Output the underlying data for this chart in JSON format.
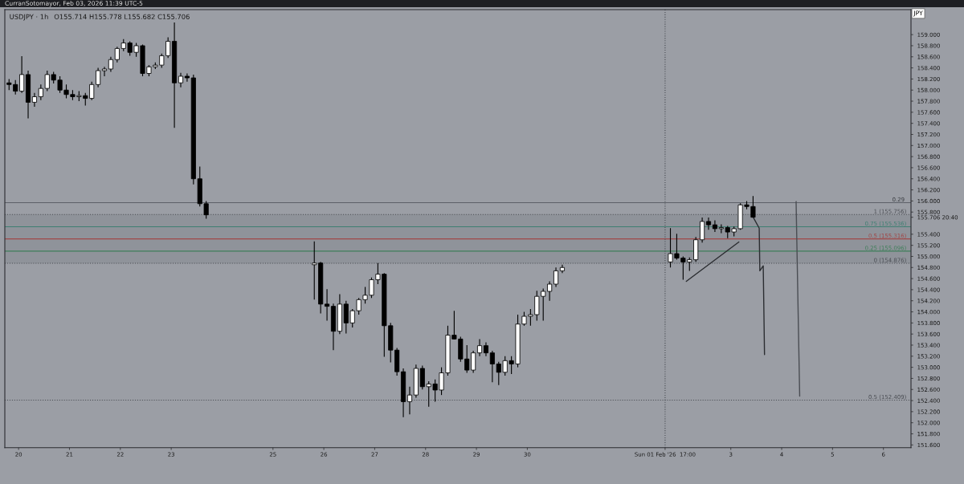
{
  "chart_data": {
    "type": "candlestick",
    "title": "USDJPY · 1h",
    "subtitle": "O155.714 H155.778 L155.682 C155.706",
    "ylabel": "JPY",
    "annotations": [
      "CurranSotomayor, Feb 03, 2026 11:39 UTC-5",
      {
        "text": "0.29",
        "x": "2026-02-06T10:00",
        "y": 155.97
      }
    ],
    "x": [
      "2026-01-19T19:30",
      "2026-01-19T22:30",
      "2026-01-20T01:30",
      "2026-01-20T04:30",
      "2026-01-20T07:30",
      "2026-01-20T10:30",
      "2026-01-20T13:30",
      "2026-01-20T16:30",
      "2026-01-20T19:30",
      "2026-01-20T22:30",
      "2026-01-21T01:30",
      "2026-01-21T04:30",
      "2026-01-21T07:30",
      "2026-01-21T10:30",
      "2026-01-21T13:30",
      "2026-01-21T16:30",
      "2026-01-21T19:30",
      "2026-01-21T22:30",
      "2026-01-22T01:30",
      "2026-01-22T04:30",
      "2026-01-22T07:30",
      "2026-01-22T10:30",
      "2026-01-22T13:30",
      "2026-01-22T16:30",
      "2026-01-22T19:30",
      "2026-01-22T22:30",
      "2026-01-23T01:30",
      "2026-01-23T04:30",
      "2026-01-23T07:30",
      "2026-01-23T10:30",
      "2026-01-23T13:30",
      "2026-01-23T16:30",
      "2026-01-25T19:30",
      "2026-01-25T22:30",
      "2026-01-26T01:30",
      "2026-01-26T04:30",
      "2026-01-26T07:30",
      "2026-01-26T10:30",
      "2026-01-26T13:30",
      "2026-01-26T16:30",
      "2026-01-26T19:30",
      "2026-01-26T22:30",
      "2026-01-27T01:30",
      "2026-01-27T04:30",
      "2026-01-27T07:30",
      "2026-01-27T10:30",
      "2026-01-27T13:30",
      "2026-01-27T16:30",
      "2026-01-27T19:30",
      "2026-01-27T22:30",
      "2026-01-28T01:30",
      "2026-01-28T04:30",
      "2026-01-28T07:30",
      "2026-01-28T10:30",
      "2026-01-28T13:30",
      "2026-01-28T16:30",
      "2026-01-28T19:30",
      "2026-01-28T22:30",
      "2026-01-29T01:30",
      "2026-01-29T04:30",
      "2026-01-29T07:30",
      "2026-01-29T10:30",
      "2026-01-29T13:30",
      "2026-01-29T16:30",
      "2026-01-29T19:30",
      "2026-01-29T22:30",
      "2026-01-30T01:30",
      "2026-01-30T04:30",
      "2026-01-30T07:30",
      "2026-01-30T10:30",
      "2026-01-30T13:30",
      "2026-01-30T16:30",
      "2026-02-01T19:30",
      "2026-02-01T22:30",
      "2026-02-02T01:30",
      "2026-02-02T04:30",
      "2026-02-02T07:30",
      "2026-02-02T10:30",
      "2026-02-02T13:30",
      "2026-02-02T16:30",
      "2026-02-02T19:30",
      "2026-02-02T22:30",
      "2026-02-03T01:30",
      "2026-02-03T04:30",
      "2026-02-03T07:30",
      "2026-02-03T10:30"
    ],
    "ohlc": [
      [
        158.13,
        158.2,
        158.0,
        158.1
      ],
      [
        158.1,
        158.18,
        157.92,
        157.98
      ],
      [
        157.98,
        158.61,
        157.95,
        158.28
      ],
      [
        158.28,
        158.35,
        157.49,
        157.78
      ],
      [
        157.78,
        157.95,
        157.7,
        157.88
      ],
      [
        157.88,
        158.1,
        157.82,
        158.03
      ],
      [
        158.03,
        158.35,
        157.98,
        158.28
      ],
      [
        158.28,
        158.33,
        158.12,
        158.18
      ],
      [
        158.18,
        158.25,
        157.95,
        158.0
      ],
      [
        158.0,
        158.1,
        157.85,
        157.92
      ],
      [
        157.92,
        158.0,
        157.82,
        157.88
      ],
      [
        157.88,
        157.98,
        157.8,
        157.9
      ],
      [
        157.9,
        157.95,
        157.72,
        157.85
      ],
      [
        157.85,
        158.15,
        157.82,
        158.1
      ],
      [
        158.1,
        158.4,
        158.05,
        158.35
      ],
      [
        158.35,
        158.42,
        158.25,
        158.38
      ],
      [
        158.38,
        158.6,
        158.33,
        158.55
      ],
      [
        158.55,
        158.78,
        158.5,
        158.75
      ],
      [
        158.75,
        158.92,
        158.7,
        158.85
      ],
      [
        158.85,
        158.88,
        158.62,
        158.68
      ],
      [
        158.68,
        158.85,
        158.6,
        158.8
      ],
      [
        158.8,
        158.82,
        158.25,
        158.3
      ],
      [
        158.3,
        158.45,
        158.25,
        158.42
      ],
      [
        158.42,
        158.5,
        158.38,
        158.45
      ],
      [
        158.45,
        158.66,
        158.4,
        158.62
      ],
      [
        158.62,
        158.95,
        158.58,
        158.88
      ],
      [
        158.88,
        159.22,
        157.32,
        158.13
      ],
      [
        158.13,
        158.31,
        158.05,
        158.25
      ],
      [
        158.25,
        158.3,
        158.15,
        158.22
      ],
      [
        158.22,
        158.28,
        156.3,
        156.4
      ],
      [
        156.4,
        156.62,
        155.9,
        155.95
      ],
      [
        155.95,
        156.0,
        155.68,
        155.75
      ],
      [
        154.85,
        155.27,
        154.22,
        154.88
      ],
      [
        154.88,
        154.9,
        153.97,
        154.14
      ],
      [
        154.14,
        154.41,
        153.84,
        154.1
      ],
      [
        154.1,
        154.15,
        153.31,
        153.65
      ],
      [
        153.65,
        154.32,
        153.6,
        154.14
      ],
      [
        154.14,
        154.2,
        153.61,
        153.8
      ],
      [
        153.8,
        154.05,
        153.72,
        154.02
      ],
      [
        154.02,
        154.25,
        153.95,
        154.22
      ],
      [
        154.22,
        154.45,
        154.15,
        154.3
      ],
      [
        154.3,
        154.62,
        154.25,
        154.58
      ],
      [
        154.58,
        154.88,
        154.5,
        154.68
      ],
      [
        154.68,
        154.7,
        153.19,
        153.75
      ],
      [
        153.75,
        153.8,
        153.09,
        153.31
      ],
      [
        153.31,
        153.35,
        152.85,
        152.92
      ],
      [
        152.92,
        152.98,
        152.1,
        152.38
      ],
      [
        152.38,
        152.65,
        152.15,
        152.5
      ],
      [
        152.5,
        153.05,
        152.45,
        152.98
      ],
      [
        152.98,
        153.03,
        152.6,
        152.65
      ],
      [
        152.65,
        152.75,
        152.29,
        152.7
      ],
      [
        152.7,
        152.78,
        152.38,
        152.59
      ],
      [
        152.59,
        153.0,
        152.5,
        152.9
      ],
      [
        152.9,
        153.75,
        152.85,
        153.58
      ],
      [
        153.58,
        154.02,
        153.5,
        153.51
      ],
      [
        153.51,
        153.55,
        153.1,
        153.15
      ],
      [
        153.15,
        153.4,
        152.9,
        152.95
      ],
      [
        152.95,
        153.3,
        152.9,
        153.26
      ],
      [
        153.26,
        153.51,
        153.2,
        153.39
      ],
      [
        153.39,
        153.45,
        153.2,
        153.26
      ],
      [
        153.26,
        153.3,
        152.73,
        153.06
      ],
      [
        153.06,
        153.1,
        152.68,
        152.91
      ],
      [
        152.91,
        153.2,
        152.85,
        153.12
      ],
      [
        153.12,
        153.2,
        152.88,
        153.06
      ],
      [
        153.06,
        153.95,
        153.0,
        153.78
      ],
      [
        153.78,
        154.0,
        153.75,
        153.92
      ],
      [
        153.92,
        154.05,
        153.75,
        153.95
      ],
      [
        153.95,
        154.38,
        153.84,
        154.28
      ],
      [
        154.28,
        154.42,
        153.84,
        154.37
      ],
      [
        154.37,
        154.55,
        154.2,
        154.5
      ],
      [
        154.5,
        154.8,
        154.45,
        154.74
      ],
      [
        154.74,
        154.85,
        154.7,
        154.8
      ],
      [
        154.9,
        155.51,
        154.8,
        155.05
      ],
      [
        155.05,
        155.41,
        154.94,
        154.97
      ],
      [
        154.97,
        155.0,
        154.58,
        154.9
      ],
      [
        154.9,
        154.98,
        154.74,
        154.94
      ],
      [
        154.94,
        155.35,
        154.9,
        155.3
      ],
      [
        155.3,
        155.7,
        155.25,
        155.63
      ],
      [
        155.63,
        155.7,
        155.48,
        155.57
      ],
      [
        155.57,
        155.65,
        155.44,
        155.5
      ],
      [
        155.5,
        155.58,
        155.42,
        155.52
      ],
      [
        155.52,
        155.55,
        155.33,
        155.44
      ],
      [
        155.44,
        155.54,
        155.36,
        155.5
      ],
      [
        155.5,
        155.96,
        155.48,
        155.93
      ],
      [
        155.93,
        156.0,
        155.85,
        155.9
      ],
      [
        155.9,
        156.09,
        155.7,
        155.706
      ]
    ],
    "series": [
      {
        "type": "line",
        "x": [
          "2026-02-02T03:00",
          "2026-02-03T03:48"
        ],
        "values": [
          154.55,
          155.26
        ],
        "color": "#2b2d31"
      },
      {
        "type": "line",
        "x": [
          "2026-02-03T10:30",
          "2026-02-03T13:24",
          "2026-02-03T13:42",
          "2026-02-03T15:18",
          "2026-02-03T15:54"
        ],
        "values": [
          155.71,
          155.51,
          154.74,
          154.83,
          153.23
        ],
        "color": "#2b2d31"
      },
      {
        "type": "line",
        "x": [
          "2026-02-04T06:48",
          "2026-02-04T08:30"
        ],
        "values": [
          155.99,
          152.48
        ],
        "color": "#4a4d53"
      }
    ],
    "xlim": [
      "2026-01-19T17:30",
      "2026-02-06T13:00"
    ],
    "ylim": [
      151.55,
      159.45
    ],
    "xticks": [
      {
        "value": "2026-01-20",
        "label": "20"
      },
      {
        "value": "2026-01-21",
        "label": "21"
      },
      {
        "value": "2026-01-22",
        "label": "22"
      },
      {
        "value": "2026-01-23",
        "label": "23"
      },
      {
        "value": "2026-01-25",
        "label": "25"
      },
      {
        "value": "2026-01-26",
        "label": "26"
      },
      {
        "value": "2026-01-27",
        "label": "27"
      },
      {
        "value": "2026-01-28",
        "label": "28"
      },
      {
        "value": "2026-01-29",
        "label": "29"
      },
      {
        "value": "2026-01-30",
        "label": "30"
      },
      {
        "value": "2026-02-01T17:00",
        "label": "Sun 01 Feb '26  17:00"
      },
      {
        "value": "2026-02-03",
        "label": "3"
      },
      {
        "value": "2026-02-04",
        "label": "4"
      },
      {
        "value": "2026-02-05",
        "label": "5"
      },
      {
        "value": "2026-02-06",
        "label": "6"
      }
    ],
    "yticks": [
      {
        "value": 151.6,
        "label": "151.600"
      },
      {
        "value": 151.8,
        "label": "151.800"
      },
      {
        "value": 152.0,
        "label": "152.000"
      },
      {
        "value": 152.2,
        "label": "152.200"
      },
      {
        "value": 152.4,
        "label": "152.400"
      },
      {
        "value": 152.6,
        "label": "152.600"
      },
      {
        "value": 152.8,
        "label": "152.800"
      },
      {
        "value": 153.0,
        "label": "153.000"
      },
      {
        "value": 153.2,
        "label": "153.200"
      },
      {
        "value": 153.4,
        "label": "153.400"
      },
      {
        "value": 153.6,
        "label": "153.600"
      },
      {
        "value": 153.8,
        "label": "153.800"
      },
      {
        "value": 154.0,
        "label": "154.000"
      },
      {
        "value": 154.2,
        "label": "154.200"
      },
      {
        "value": 154.4,
        "label": "154.400"
      },
      {
        "value": 154.6,
        "label": "154.600"
      },
      {
        "value": 154.8,
        "label": "154.800"
      },
      {
        "value": 155.0,
        "label": "155.000"
      },
      {
        "value": 155.2,
        "label": "155.200"
      },
      {
        "value": 155.4,
        "label": "155.400"
      },
      {
        "value": 155.706,
        "label": "155.706 20:40"
      },
      {
        "value": 155.8,
        "label": "155.800"
      },
      {
        "value": 156.0,
        "label": "156.000"
      },
      {
        "value": 156.2,
        "label": "156.200"
      },
      {
        "value": 156.4,
        "label": "156.400"
      },
      {
        "value": 156.6,
        "label": "156.600"
      },
      {
        "value": 156.8,
        "label": "156.800"
      },
      {
        "value": 157.0,
        "label": "157.000"
      },
      {
        "value": 157.2,
        "label": "157.200"
      },
      {
        "value": 157.4,
        "label": "157.400"
      },
      {
        "value": 157.6,
        "label": "157.600"
      },
      {
        "value": 157.8,
        "label": "157.800"
      },
      {
        "value": 158.0,
        "label": "158.000"
      },
      {
        "value": 158.2,
        "label": "158.200"
      },
      {
        "value": 158.4,
        "label": "158.400"
      },
      {
        "value": 158.6,
        "label": "158.600"
      },
      {
        "value": 158.8,
        "label": "158.800"
      },
      {
        "value": 159.0,
        "label": "159.000"
      }
    ],
    "ref_lines": [
      {
        "axis": "y",
        "value": 155.97,
        "line_style": "solid",
        "color": "#5c6068"
      },
      {
        "axis": "y",
        "value": 155.756,
        "label": "1 (155.756)",
        "line_style": "dotted",
        "color": "#4a4d53"
      },
      {
        "axis": "y",
        "value": 155.536,
        "label": "0.75 (155.536)",
        "line_style": "solid",
        "color": "#3f7f72"
      },
      {
        "axis": "y",
        "value": 155.316,
        "label": "0.5 (155.316)",
        "line_style": "solid",
        "color": "#a04848"
      },
      {
        "axis": "y",
        "value": 155.096,
        "label": "0.25 (155.096)",
        "line_style": "solid",
        "color": "#3f7f5a"
      },
      {
        "axis": "y",
        "value": 154.876,
        "label": "0 (154.876)",
        "line_style": "dotted",
        "color": "#4a4d53"
      },
      {
        "axis": "y",
        "value": 152.409,
        "label": "0.5 (152.409)",
        "line_style": "dotted",
        "color": "#4a4d53"
      },
      {
        "axis": "x",
        "value": "2026-02-01T17:00",
        "line_style": "dotted",
        "color": "#4a4d53"
      }
    ],
    "bands": [
      {
        "axis": "y",
        "from": 154.876,
        "to": 155.756,
        "color": "#8f939a"
      }
    ]
  }
}
